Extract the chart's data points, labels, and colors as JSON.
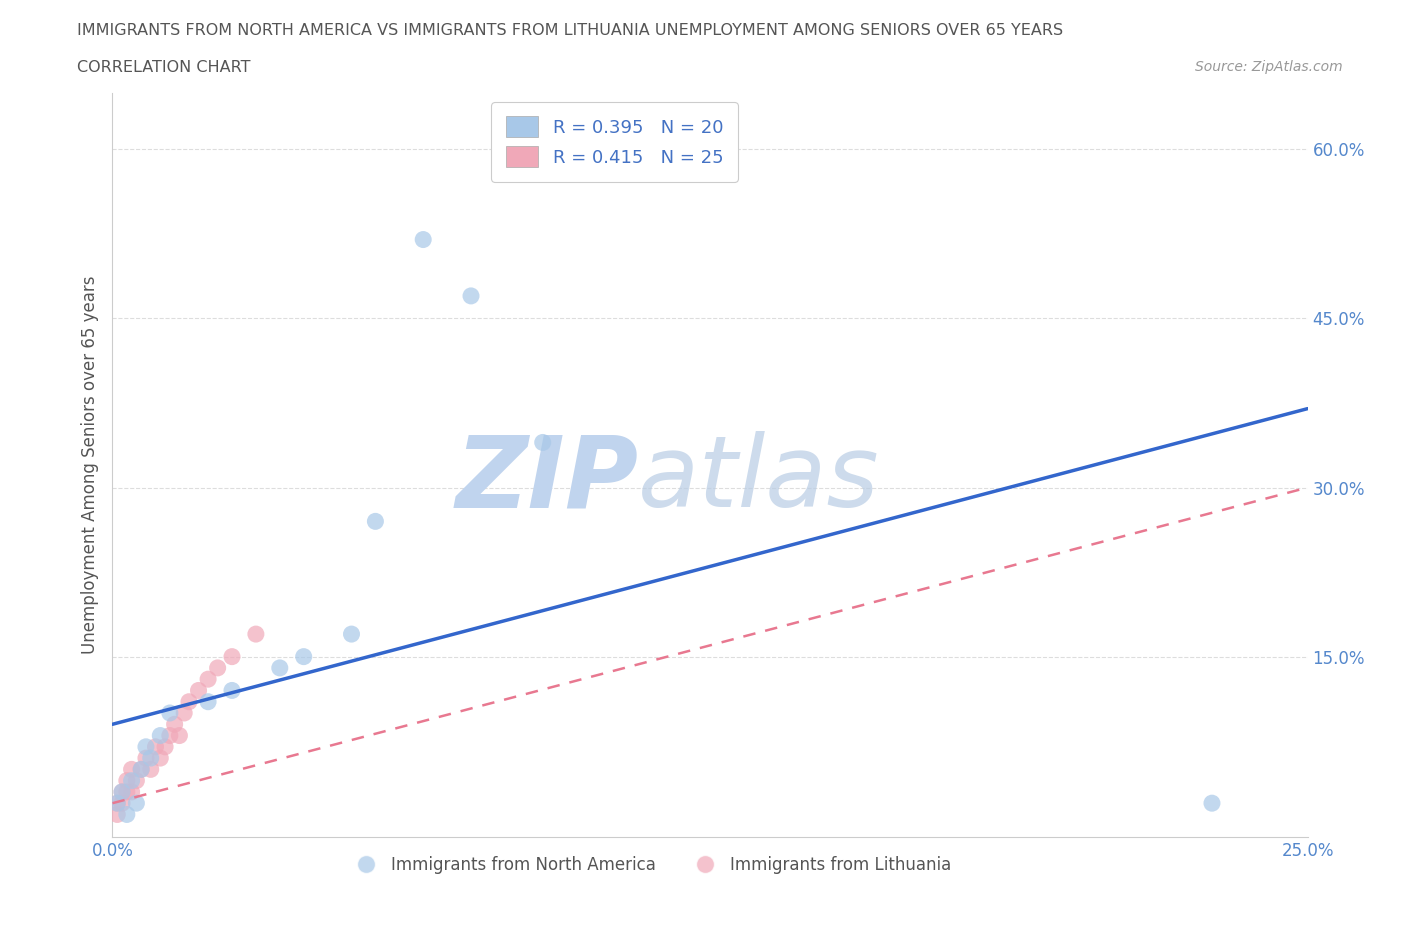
{
  "title_line1": "IMMIGRANTS FROM NORTH AMERICA VS IMMIGRANTS FROM LITHUANIA UNEMPLOYMENT AMONG SENIORS OVER 65 YEARS",
  "title_line2": "CORRELATION CHART",
  "source_text": "Source: ZipAtlas.com",
  "ylabel": "Unemployment Among Seniors over 65 years",
  "xlim": [
    0.0,
    0.25
  ],
  "ylim": [
    -0.01,
    0.65
  ],
  "xticks": [
    0.0,
    0.05,
    0.1,
    0.15,
    0.2,
    0.25
  ],
  "xtick_labels": [
    "0.0%",
    "",
    "",
    "",
    "",
    "25.0%"
  ],
  "yticks_right": [
    0.15,
    0.3,
    0.45,
    0.6
  ],
  "ytick_labels_right": [
    "15.0%",
    "30.0%",
    "45.0%",
    "60.0%"
  ],
  "blue_color": "#a8c8e8",
  "pink_color": "#f0a8b8",
  "blue_line_color": "#3366cc",
  "pink_line_color": "#e87890",
  "R_blue": 0.395,
  "N_blue": 20,
  "R_pink": 0.415,
  "N_pink": 25,
  "blue_x": [
    0.001,
    0.002,
    0.003,
    0.004,
    0.005,
    0.006,
    0.007,
    0.008,
    0.01,
    0.012,
    0.02,
    0.025,
    0.035,
    0.04,
    0.05,
    0.055,
    0.065,
    0.075,
    0.09,
    0.23
  ],
  "blue_y": [
    0.02,
    0.03,
    0.01,
    0.04,
    0.02,
    0.05,
    0.07,
    0.06,
    0.08,
    0.1,
    0.11,
    0.12,
    0.14,
    0.15,
    0.17,
    0.27,
    0.52,
    0.47,
    0.34,
    0.02
  ],
  "pink_x": [
    0.001,
    0.001,
    0.002,
    0.002,
    0.003,
    0.003,
    0.004,
    0.004,
    0.005,
    0.006,
    0.007,
    0.008,
    0.009,
    0.01,
    0.011,
    0.012,
    0.013,
    0.014,
    0.015,
    0.016,
    0.018,
    0.02,
    0.022,
    0.025,
    0.03
  ],
  "pink_y": [
    0.01,
    0.02,
    0.02,
    0.03,
    0.03,
    0.04,
    0.03,
    0.05,
    0.04,
    0.05,
    0.06,
    0.05,
    0.07,
    0.06,
    0.07,
    0.08,
    0.09,
    0.08,
    0.1,
    0.11,
    0.12,
    0.13,
    0.14,
    0.15,
    0.17
  ],
  "blue_line_x": [
    0.0,
    0.25
  ],
  "blue_line_y": [
    0.09,
    0.37
  ],
  "pink_line_x": [
    0.0,
    0.25
  ],
  "pink_line_y": [
    0.02,
    0.3
  ],
  "watermark_zip": "ZIP",
  "watermark_atlas": "atlas",
  "watermark_color": "#c8d8ee",
  "background_color": "#ffffff",
  "grid_color": "#dddddd",
  "title_color": "#555555",
  "legend_label_blue": "Immigrants from North America",
  "legend_label_pink": "Immigrants from Lithuania"
}
